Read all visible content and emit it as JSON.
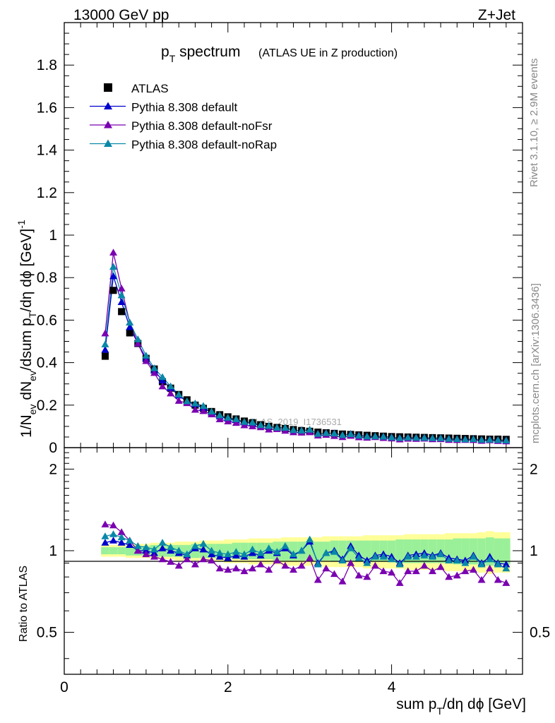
{
  "header": {
    "left": "13000 GeV pp",
    "right": "Z+Jet"
  },
  "title": {
    "main": "p",
    "main_sub": "T",
    "main_rest": " spectrum",
    "note": "(ATLAS UE in Z production)"
  },
  "side": {
    "rivet": "Rivet 3.1.10, ≥ 2.9M events",
    "mcplots": "mcplots.cern.ch [arXiv:1306.3436]"
  },
  "watermark": "ATLAS_2019_I1736531",
  "axes": {
    "xlabel": "sum p_T/dη dϕ [GeV]",
    "ylabel_main": "1/N_ev dN_ev/dsum p_T/dη dϕ [GeV]^-1",
    "ylabel_ratio": "Ratio to ATLAS",
    "xticks": [
      "0",
      "2",
      "4"
    ],
    "yticks_main": [
      "0",
      "0.2",
      "0.4",
      "0.6",
      "0.8",
      "1",
      "1.2",
      "1.4",
      "1.6",
      "1.8"
    ],
    "yticks_ratio": [
      "0.5",
      "1",
      "2"
    ]
  },
  "legend": [
    {
      "label": "ATLAS",
      "color": "#000000",
      "marker": "square"
    },
    {
      "label": "Pythia 8.308 default",
      "color": "#0000cc",
      "marker": "triangle"
    },
    {
      "label": "Pythia 8.308 default-noFsr",
      "color": "#7a00b0",
      "marker": "triangle"
    },
    {
      "label": "Pythia 8.308 default-noRap",
      "color": "#0a88a8",
      "marker": "triangle"
    }
  ],
  "chart_data": {
    "type": "scatter",
    "xlim": [
      0,
      5.6
    ],
    "ylim_main": [
      0,
      2.0
    ],
    "ylim_ratio": [
      0.35,
      2.4
    ],
    "ratio_log_scale": true,
    "x": [
      0.5,
      0.6,
      0.7,
      0.8,
      0.9,
      1.0,
      1.1,
      1.2,
      1.3,
      1.4,
      1.5,
      1.6,
      1.7,
      1.8,
      1.9,
      2.0,
      2.1,
      2.2,
      2.3,
      2.4,
      2.5,
      2.6,
      2.7,
      2.8,
      2.9,
      3.0,
      3.1,
      3.2,
      3.3,
      3.4,
      3.5,
      3.6,
      3.7,
      3.8,
      3.9,
      4.0,
      4.1,
      4.2,
      4.3,
      4.4,
      4.5,
      4.6,
      4.7,
      4.8,
      4.9,
      5.0,
      5.1,
      5.2,
      5.3,
      5.4
    ],
    "data": {
      "name": "ATLAS",
      "values": [
        0.43,
        0.74,
        0.64,
        0.54,
        0.49,
        0.42,
        0.37,
        0.31,
        0.28,
        0.25,
        0.225,
        0.2,
        0.185,
        0.17,
        0.155,
        0.145,
        0.135,
        0.125,
        0.117,
        0.108,
        0.1,
        0.095,
        0.09,
        0.085,
        0.08,
        0.077,
        0.073,
        0.07,
        0.067,
        0.064,
        0.062,
        0.06,
        0.058,
        0.056,
        0.054,
        0.052,
        0.051,
        0.05,
        0.049,
        0.048,
        0.047,
        0.046,
        0.045,
        0.044,
        0.043,
        0.042,
        0.041,
        0.04,
        0.04,
        0.039
      ]
    },
    "band_inner": [
      0.03,
      0.03,
      0.03,
      0.04,
      0.04,
      0.04,
      0.05,
      0.05,
      0.05,
      0.05,
      0.05,
      0.06,
      0.06,
      0.06,
      0.06,
      0.06,
      0.07,
      0.07,
      0.07,
      0.07,
      0.07,
      0.08,
      0.08,
      0.08,
      0.08,
      0.08,
      0.08,
      0.08,
      0.09,
      0.09,
      0.09,
      0.09,
      0.09,
      0.09,
      0.09,
      0.09,
      0.1,
      0.1,
      0.1,
      0.1,
      0.1,
      0.1,
      0.1,
      0.11,
      0.11,
      0.11,
      0.11,
      0.12,
      0.11,
      0.11
    ],
    "band_outer": [
      0.05,
      0.05,
      0.05,
      0.06,
      0.06,
      0.06,
      0.07,
      0.07,
      0.07,
      0.08,
      0.08,
      0.08,
      0.09,
      0.09,
      0.09,
      0.1,
      0.1,
      0.1,
      0.11,
      0.11,
      0.11,
      0.11,
      0.12,
      0.12,
      0.12,
      0.12,
      0.12,
      0.13,
      0.13,
      0.13,
      0.13,
      0.13,
      0.14,
      0.14,
      0.14,
      0.14,
      0.14,
      0.15,
      0.15,
      0.15,
      0.15,
      0.15,
      0.16,
      0.16,
      0.16,
      0.16,
      0.17,
      0.18,
      0.17,
      0.17
    ],
    "series": [
      {
        "name": "Pythia 8.308 default",
        "ratio": [
          1.07,
          1.09,
          1.07,
          1.05,
          1.0,
          1.0,
          0.98,
          1.02,
          1.0,
          0.98,
          0.96,
          1.02,
          1.01,
          0.97,
          0.95,
          0.94,
          0.96,
          0.95,
          0.98,
          0.96,
          1.0,
          0.98,
          1.02,
          0.96,
          1.0,
          1.08,
          0.9,
          0.98,
          1.0,
          0.93,
          1.04,
          0.96,
          0.92,
          0.96,
          0.97,
          0.95,
          0.9,
          0.96,
          0.97,
          0.98,
          0.96,
          0.98,
          0.94,
          0.93,
          0.92,
          0.96,
          0.9,
          0.95,
          0.9,
          0.89
        ]
      },
      {
        "name": "Pythia 8.308 default-noFsr",
        "ratio": [
          1.25,
          1.24,
          1.17,
          1.09,
          1.0,
          0.97,
          0.95,
          0.93,
          0.91,
          0.88,
          0.93,
          0.89,
          0.93,
          0.92,
          0.86,
          0.85,
          0.86,
          0.84,
          0.86,
          0.89,
          0.85,
          0.92,
          0.88,
          0.85,
          0.88,
          0.94,
          0.78,
          0.86,
          0.82,
          0.77,
          0.9,
          0.81,
          0.8,
          0.88,
          0.84,
          0.83,
          0.76,
          0.84,
          0.84,
          0.88,
          0.84,
          0.87,
          0.8,
          0.81,
          0.84,
          0.85,
          0.78,
          0.86,
          0.78,
          0.76
        ]
      },
      {
        "name": "Pythia 8.308 default-noRap",
        "ratio": [
          1.13,
          1.15,
          1.12,
          1.09,
          1.04,
          1.03,
          1.01,
          1.07,
          1.03,
          1.0,
          0.97,
          1.04,
          1.06,
          1.0,
          0.98,
          0.97,
          0.99,
          0.97,
          1.01,
          0.98,
          1.02,
          0.99,
          1.04,
          0.97,
          1.0,
          1.1,
          0.89,
          0.98,
          0.99,
          0.92,
          1.02,
          0.94,
          0.9,
          0.95,
          0.95,
          0.93,
          0.89,
          0.95,
          0.95,
          0.96,
          0.95,
          0.97,
          0.92,
          0.92,
          0.9,
          0.95,
          0.89,
          0.93,
          0.89,
          0.86
        ]
      }
    ]
  }
}
